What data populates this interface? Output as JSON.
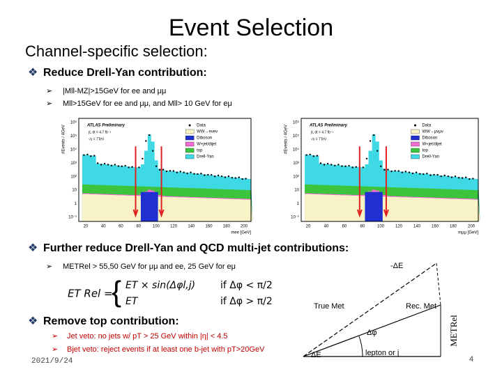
{
  "title": "Event Selection",
  "subtitle": "Channel-specific selection:",
  "sections": [
    {
      "heading": "Reduce Drell-Yan contribution:",
      "bullets": [
        "|Mll-MZ|>15GeV for ee and μμ",
        "Mll>15GeV for ee and μμ, and Mll> 10 GeV for eμ"
      ]
    },
    {
      "heading": "Further reduce Drell-Yan and QCD multi-jet contributions:",
      "bullets": [
        "METRel > 55,50 GeV for μμ and ee, 25 GeV for eμ"
      ]
    },
    {
      "heading": "Remove top contribution:",
      "bullets": [
        "Jet veto: no jets w/ pT > 25 GeV within |η| < 4.5",
        "Bjet veto: reject events if at least one b-jet with pT>20GeV"
      ]
    }
  ],
  "plots": [
    {
      "y_label": "#Events / 4GeV",
      "x_label": "mee [GeV]",
      "experiment": "ATLAS Preliminary",
      "luminosity": "∫L dt = 4.7 fb⁻¹",
      "energy": "√s = 7TeV",
      "yticks": [
        "10⁶",
        "10⁵",
        "10⁴",
        "10³",
        "10²",
        "10",
        "1",
        "10⁻¹"
      ],
      "xticks": [
        "20",
        "40",
        "60",
        "80",
        "100",
        "120",
        "140",
        "160",
        "180",
        "200"
      ],
      "legend": [
        {
          "label": "Data",
          "color": "#000000"
        },
        {
          "label": "WW→eνeν",
          "color": "#f7f3c6"
        },
        {
          "label": "Diboson",
          "color": "#1f2fd0"
        },
        {
          "label": "W+jet/dijet",
          "color": "#f26cd6"
        },
        {
          "label": "top",
          "color": "#3cc43c"
        },
        {
          "label": "Drell-Yan",
          "color": "#3fd9e6"
        }
      ]
    },
    {
      "y_label": "#Events / 4GeV",
      "x_label": "mμμ [GeV]",
      "experiment": "ATLAS Preliminary",
      "luminosity": "∫L dt = 4.7 fb⁻¹",
      "energy": "√s = 7TeV",
      "yticks": [
        "10⁶",
        "10⁵",
        "10⁴",
        "10³",
        "10²",
        "10",
        "1",
        "10⁻¹"
      ],
      "xticks": [
        "20",
        "40",
        "60",
        "80",
        "100",
        "120",
        "140",
        "160",
        "180",
        "200"
      ],
      "legend": [
        {
          "label": "Data",
          "color": "#000000"
        },
        {
          "label": "WW→μνμν",
          "color": "#f7f3c6"
        },
        {
          "label": "Diboson",
          "color": "#1f2fd0"
        },
        {
          "label": "W+jet/dijet",
          "color": "#f26cd6"
        },
        {
          "label": "top",
          "color": "#3cc43c"
        },
        {
          "label": "Drell-Yan",
          "color": "#3fd9e6"
        }
      ]
    }
  ],
  "formula": {
    "lhs": "ET Rel =",
    "case1": "ET × sin(Δφl,j)",
    "cond1": "if Δφ < π/2",
    "case2": "ET",
    "cond2": "if Δφ > π/2"
  },
  "diagram": {
    "minus_delta_e": "-ΔE",
    "true_met": "True Met",
    "rec_met": "Rec. Met",
    "delta_phi": "Δφ",
    "delta_e": "ΔE",
    "lepton": "lepton or j",
    "met_rel": "METRel"
  },
  "footer": {
    "date": "2021/9/24",
    "page": "4"
  }
}
